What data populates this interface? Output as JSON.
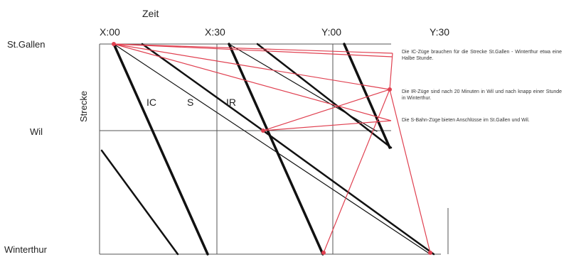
{
  "axis": {
    "x_title": "Zeit",
    "y_title": "Strecke",
    "time_ticks": [
      "X:00",
      "X:30",
      "Y:00",
      "Y:30"
    ],
    "stations": [
      "St.Gallen",
      "Wil",
      "Winterthur"
    ]
  },
  "train_labels": [
    "IC",
    "S",
    "IR"
  ],
  "notes": [
    "Die IC-Züge brauchen für die Strecke St.Gallen - Winterthur etwa eine Halbe Stunde.",
    "Die IR-Züge sind nach 20 Minuten in Wil und nach knapp einer Stunde in Winterthur.",
    "Die S-Bahn-Züge bieten Anschlüsse im St.Gallen und Wil."
  ],
  "colors": {
    "grid": "#555555",
    "train": "#111111",
    "annotation": "#e04050",
    "text": "#222222"
  }
}
